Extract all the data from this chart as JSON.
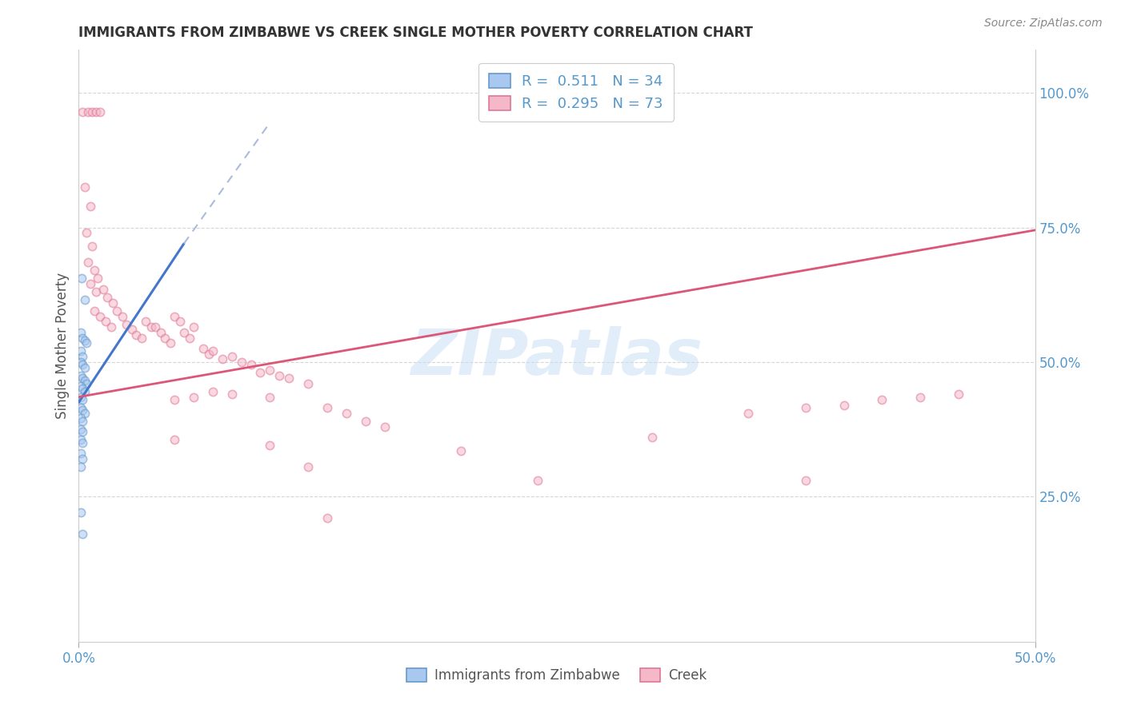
{
  "title": "IMMIGRANTS FROM ZIMBABWE VS CREEK SINGLE MOTHER POVERTY CORRELATION CHART",
  "source": "Source: ZipAtlas.com",
  "ylabel": "Single Mother Poverty",
  "xlim": [
    0.0,
    0.5
  ],
  "ylim": [
    -0.02,
    1.08
  ],
  "xtick_positions": [
    0.0,
    0.5
  ],
  "xtick_labels": [
    "0.0%",
    "50.0%"
  ],
  "ytick_values": [
    0.25,
    0.5,
    0.75,
    1.0
  ],
  "ytick_labels": [
    "25.0%",
    "50.0%",
    "75.0%",
    "100.0%"
  ],
  "legend_entries": [
    {
      "label": "Immigrants from Zimbabwe",
      "color": "#a8c8f0",
      "R": "0.511",
      "N": "34"
    },
    {
      "label": "Creek",
      "color": "#f5b8c8",
      "R": "0.295",
      "N": "73"
    }
  ],
  "watermark": "ZIPatlas",
  "blue_scatter": [
    [
      0.0015,
      0.655
    ],
    [
      0.003,
      0.615
    ],
    [
      0.001,
      0.555
    ],
    [
      0.002,
      0.545
    ],
    [
      0.003,
      0.54
    ],
    [
      0.004,
      0.535
    ],
    [
      0.001,
      0.52
    ],
    [
      0.002,
      0.51
    ],
    [
      0.001,
      0.5
    ],
    [
      0.002,
      0.495
    ],
    [
      0.003,
      0.49
    ],
    [
      0.001,
      0.475
    ],
    [
      0.002,
      0.47
    ],
    [
      0.003,
      0.465
    ],
    [
      0.004,
      0.46
    ],
    [
      0.001,
      0.455
    ],
    [
      0.002,
      0.45
    ],
    [
      0.003,
      0.445
    ],
    [
      0.001,
      0.435
    ],
    [
      0.002,
      0.43
    ],
    [
      0.001,
      0.415
    ],
    [
      0.002,
      0.41
    ],
    [
      0.003,
      0.405
    ],
    [
      0.001,
      0.395
    ],
    [
      0.002,
      0.39
    ],
    [
      0.001,
      0.375
    ],
    [
      0.002,
      0.37
    ],
    [
      0.001,
      0.355
    ],
    [
      0.002,
      0.35
    ],
    [
      0.001,
      0.33
    ],
    [
      0.002,
      0.32
    ],
    [
      0.001,
      0.305
    ],
    [
      0.001,
      0.22
    ],
    [
      0.002,
      0.18
    ]
  ],
  "pink_scatter": [
    [
      0.002,
      0.965
    ],
    [
      0.005,
      0.965
    ],
    [
      0.007,
      0.965
    ],
    [
      0.009,
      0.965
    ],
    [
      0.011,
      0.965
    ],
    [
      0.003,
      0.825
    ],
    [
      0.006,
      0.79
    ],
    [
      0.004,
      0.74
    ],
    [
      0.007,
      0.715
    ],
    [
      0.005,
      0.685
    ],
    [
      0.008,
      0.67
    ],
    [
      0.006,
      0.645
    ],
    [
      0.009,
      0.63
    ],
    [
      0.01,
      0.655
    ],
    [
      0.013,
      0.635
    ],
    [
      0.015,
      0.62
    ],
    [
      0.018,
      0.61
    ],
    [
      0.008,
      0.595
    ],
    [
      0.011,
      0.585
    ],
    [
      0.014,
      0.575
    ],
    [
      0.017,
      0.565
    ],
    [
      0.02,
      0.595
    ],
    [
      0.023,
      0.585
    ],
    [
      0.025,
      0.57
    ],
    [
      0.028,
      0.56
    ],
    [
      0.03,
      0.55
    ],
    [
      0.033,
      0.545
    ],
    [
      0.035,
      0.575
    ],
    [
      0.038,
      0.565
    ],
    [
      0.04,
      0.565
    ],
    [
      0.043,
      0.555
    ],
    [
      0.045,
      0.545
    ],
    [
      0.048,
      0.535
    ],
    [
      0.05,
      0.585
    ],
    [
      0.053,
      0.575
    ],
    [
      0.055,
      0.555
    ],
    [
      0.058,
      0.545
    ],
    [
      0.06,
      0.565
    ],
    [
      0.065,
      0.525
    ],
    [
      0.068,
      0.515
    ],
    [
      0.07,
      0.52
    ],
    [
      0.075,
      0.505
    ],
    [
      0.08,
      0.51
    ],
    [
      0.085,
      0.5
    ],
    [
      0.09,
      0.495
    ],
    [
      0.095,
      0.48
    ],
    [
      0.1,
      0.485
    ],
    [
      0.105,
      0.475
    ],
    [
      0.11,
      0.47
    ],
    [
      0.12,
      0.46
    ],
    [
      0.05,
      0.43
    ],
    [
      0.06,
      0.435
    ],
    [
      0.07,
      0.445
    ],
    [
      0.08,
      0.44
    ],
    [
      0.1,
      0.435
    ],
    [
      0.13,
      0.415
    ],
    [
      0.14,
      0.405
    ],
    [
      0.15,
      0.39
    ],
    [
      0.16,
      0.38
    ],
    [
      0.05,
      0.355
    ],
    [
      0.1,
      0.345
    ],
    [
      0.2,
      0.335
    ],
    [
      0.3,
      0.36
    ],
    [
      0.35,
      0.405
    ],
    [
      0.38,
      0.415
    ],
    [
      0.4,
      0.42
    ],
    [
      0.42,
      0.43
    ],
    [
      0.44,
      0.435
    ],
    [
      0.46,
      0.44
    ],
    [
      0.12,
      0.305
    ],
    [
      0.24,
      0.28
    ],
    [
      0.38,
      0.28
    ],
    [
      0.13,
      0.21
    ]
  ],
  "blue_line_solid": {
    "x": [
      0.0,
      0.055
    ],
    "y": [
      0.425,
      0.72
    ]
  },
  "blue_line_dashed": {
    "x": [
      0.055,
      0.1
    ],
    "y": [
      0.72,
      0.945
    ]
  },
  "pink_line": {
    "x": [
      0.0,
      0.5
    ],
    "y": [
      0.435,
      0.745
    ]
  },
  "scatter_size": 55,
  "scatter_alpha": 0.55,
  "scatter_lw": 1.2,
  "blue_color": "#a8c8f0",
  "pink_color": "#f5b8c8",
  "blue_edge": "#6699cc",
  "pink_edge": "#dd7799",
  "title_color": "#333333",
  "axis_color": "#555555",
  "tick_color": "#5599cc",
  "grid_color": "#cccccc",
  "background_color": "#ffffff",
  "legend_color": "#5599cc"
}
